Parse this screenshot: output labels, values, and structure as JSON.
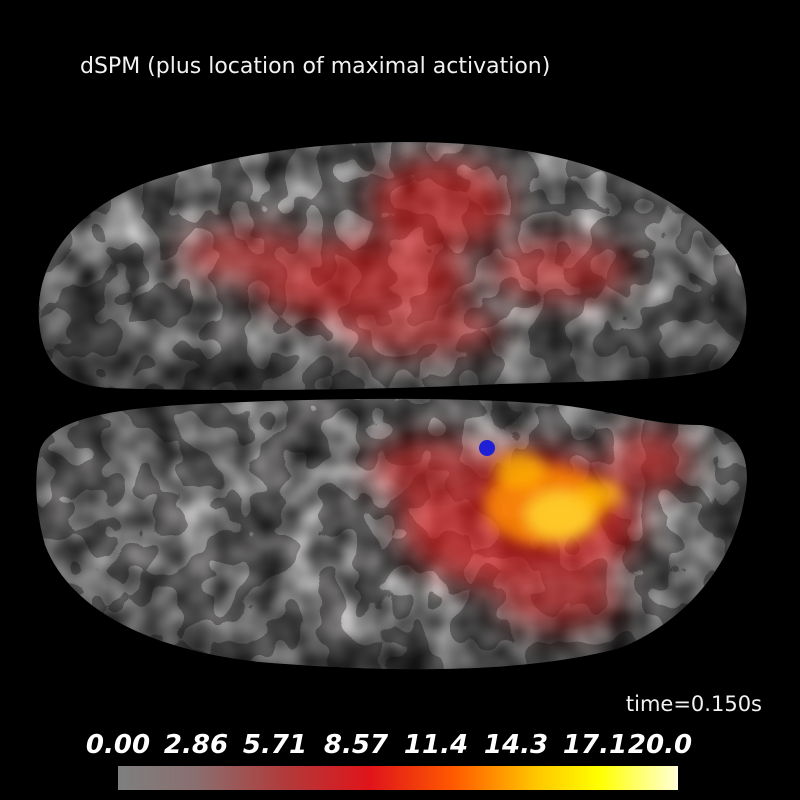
{
  "title": "dSPM (plus location of maximal activation)",
  "time_label": "time=0.150s",
  "colorbar": {
    "ticks": [
      "0.00",
      "2.86",
      "5.71",
      "8.57",
      "11.4",
      "14.3",
      "17.1",
      "20.0"
    ],
    "colors": [
      "#7f7f7f",
      "#8a6f6f",
      "#b23a3a",
      "#e0141b",
      "#ff5a00",
      "#ffc800",
      "#ffff00",
      "#ffffd8"
    ]
  },
  "colors": {
    "background": "#000000",
    "sulcus": "#5a5656",
    "gyrus": "#cfcccc",
    "activation_low": "#e81818",
    "activation_high": "#ffe23a",
    "peak_marker": "#1f1fd6"
  }
}
